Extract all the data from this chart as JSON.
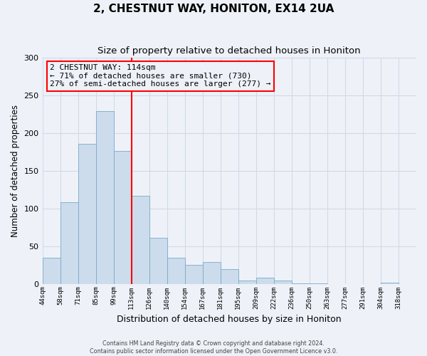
{
  "title": "2, CHESTNUT WAY, HONITON, EX14 2UA",
  "subtitle": "Size of property relative to detached houses in Honiton",
  "xlabel": "Distribution of detached houses by size in Honiton",
  "ylabel": "Number of detached properties",
  "footer_line1": "Contains HM Land Registry data © Crown copyright and database right 2024.",
  "footer_line2": "Contains public sector information licensed under the Open Government Licence v3.0.",
  "bin_labels": [
    "44sqm",
    "58sqm",
    "71sqm",
    "85sqm",
    "99sqm",
    "113sqm",
    "126sqm",
    "140sqm",
    "154sqm",
    "167sqm",
    "181sqm",
    "195sqm",
    "209sqm",
    "222sqm",
    "236sqm",
    "250sqm",
    "263sqm",
    "277sqm",
    "291sqm",
    "304sqm",
    "318sqm"
  ],
  "bar_heights": [
    35,
    108,
    185,
    229,
    176,
    117,
    61,
    35,
    25,
    29,
    19,
    4,
    8,
    4,
    1,
    1,
    0,
    0,
    0,
    2,
    0
  ],
  "bar_color": "#ccdcec",
  "bar_edge_color": "#7aaac8",
  "property_line_x": 5,
  "property_line_color": "red",
  "annotation_title": "2 CHESTNUT WAY: 114sqm",
  "annotation_line1": "← 71% of detached houses are smaller (730)",
  "annotation_line2": "27% of semi-detached houses are larger (277) →",
  "annotation_box_color": "red",
  "ylim": [
    0,
    300
  ],
  "yticks": [
    0,
    50,
    100,
    150,
    200,
    250,
    300
  ],
  "grid_color": "#d0daea",
  "background_color": "#eef2f8"
}
